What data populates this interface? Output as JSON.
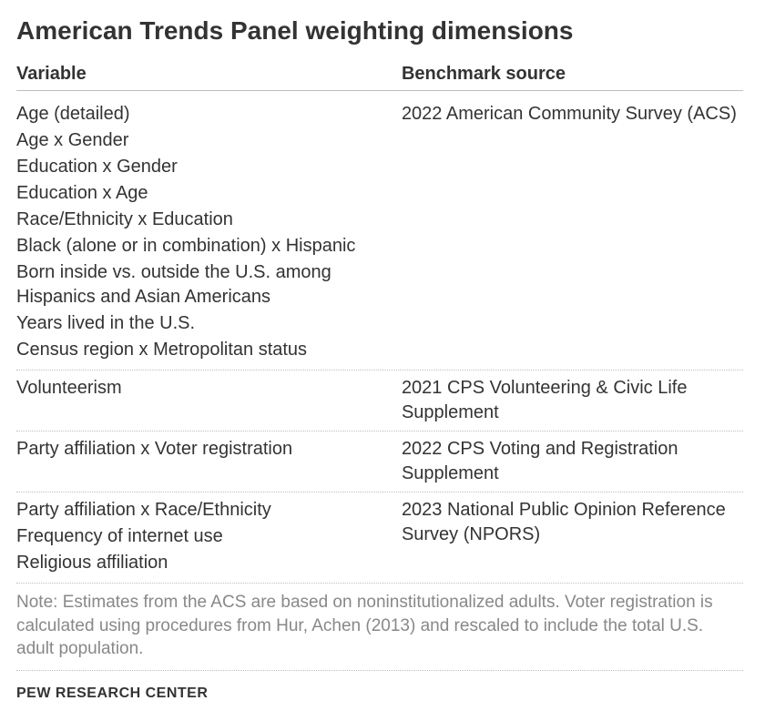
{
  "title": "American Trends Panel weighting dimensions",
  "headers": {
    "variable": "Variable",
    "benchmark": "Benchmark source"
  },
  "groups": [
    {
      "vars": [
        "Age (detailed)",
        "Age x Gender",
        "Education x Gender",
        "Education x Age",
        "Race/Ethnicity x Education",
        "Black (alone or in combination) x Hispanic",
        "Born inside vs. outside the U.S. among Hispanics and Asian Americans",
        "Years lived in the U.S.",
        "Census region x Metropolitan status"
      ],
      "source": "2022 American Community Survey (ACS)"
    },
    {
      "vars": [
        "Volunteerism"
      ],
      "source": "2021 CPS Volunteering & Civic Life Supplement"
    },
    {
      "vars": [
        "Party affiliation x Voter registration"
      ],
      "source": "2022 CPS Voting and Registration Supplement"
    },
    {
      "vars": [
        "Party affiliation x Race/Ethnicity",
        "Frequency of internet use",
        "Religious affiliation"
      ],
      "source": "2023 National Public Opinion Reference Survey (NPORS)"
    }
  ],
  "note": "Note: Estimates from the ACS are based on noninstitutionalized adults. Voter registration is calculated using procedures from Hur, Achen (2013) and rescaled to include the total U.S. adult population.",
  "attribution": "PEW RESEARCH CENTER",
  "colors": {
    "text": "#333333",
    "muted": "#888888",
    "border": "#bfbfbf",
    "background": "#ffffff"
  },
  "typography": {
    "title_fontsize": 28,
    "body_fontsize": 20,
    "note_fontsize": 19,
    "attribution_fontsize": 16
  }
}
